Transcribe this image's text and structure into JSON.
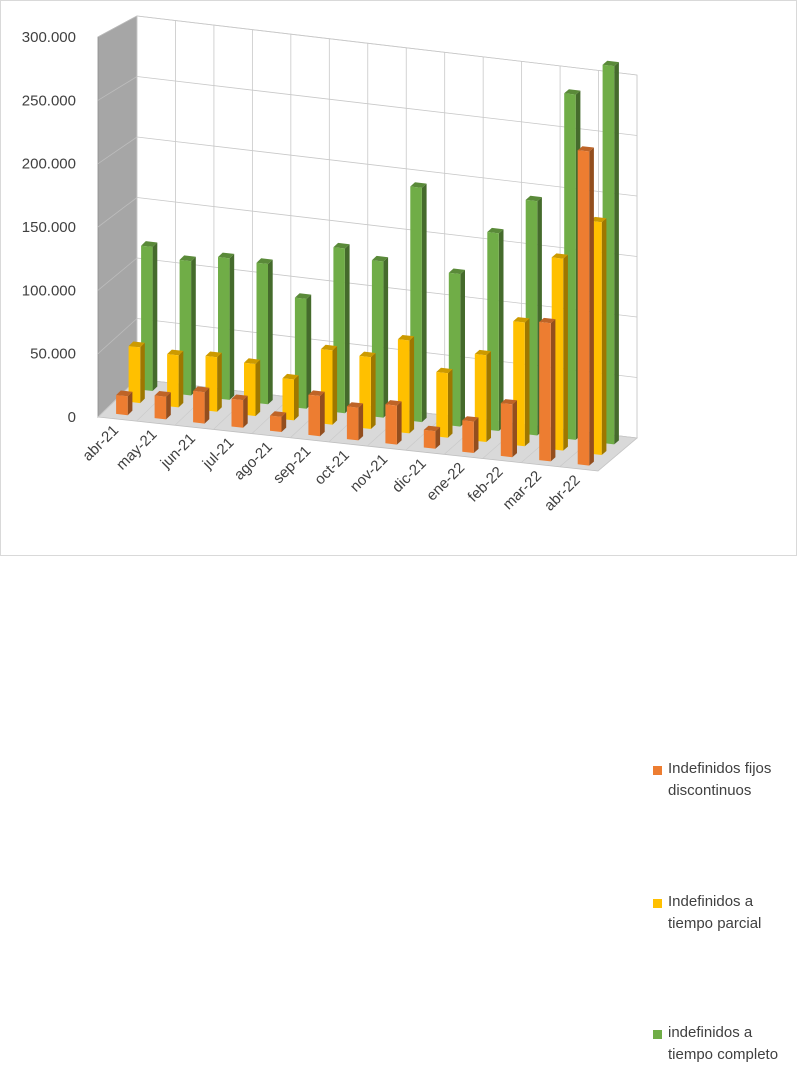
{
  "chart_data": {
    "type": "bar",
    "title": "",
    "xlabel": "",
    "ylabel": "",
    "ylim": [
      0,
      300000
    ],
    "y_ticks": [
      "0",
      "50.000",
      "100.000",
      "150.000",
      "200.000",
      "250.000",
      "300.000"
    ],
    "y_tick_values": [
      0,
      50000,
      100000,
      150000,
      200000,
      250000,
      300000
    ],
    "categories": [
      "abr-21",
      "may-21",
      "jun-21",
      "jul-21",
      "ago-21",
      "sep-21",
      "oct-21",
      "nov-21",
      "dic-21",
      "ene-22",
      "feb-22",
      "mar-22",
      "abr-22"
    ],
    "grid": true,
    "legend_position": "right",
    "series": [
      {
        "name": "Indefinidos fijos discontinuos",
        "color": "#ed7d31",
        "values": [
          15000,
          18000,
          25000,
          22000,
          12000,
          32000,
          26000,
          31000,
          14000,
          25000,
          42000,
          110000,
          250000
        ]
      },
      {
        "name": "Indefinidos a tiempo parcial",
        "color": "#ffc000",
        "values": [
          45000,
          42000,
          44000,
          42000,
          33000,
          60000,
          58000,
          75000,
          52000,
          70000,
          100000,
          155000,
          188000
        ]
      },
      {
        "name": "indefinidos a tiempo completo",
        "color": "#70ad47",
        "values": [
          118000,
          110000,
          116000,
          115000,
          90000,
          135000,
          128000,
          192000,
          125000,
          162000,
          192000,
          283000,
          310000
        ]
      }
    ]
  }
}
